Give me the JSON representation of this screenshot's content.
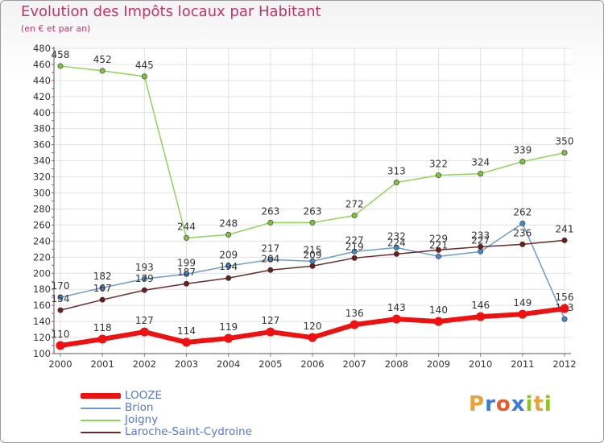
{
  "title": "Evolution des Impôts locaux par Habitant",
  "subtitle": "(en € et par an)",
  "logo": {
    "letters": [
      "P",
      "r",
      "o",
      "x",
      "i",
      "t",
      "i"
    ],
    "colors": [
      "#e9a13a",
      "#3b7bd6",
      "#e95a2b",
      "#3b7bd6",
      "#8fc31f",
      "#e9a13a",
      "#8fc31f"
    ]
  },
  "chart_data": {
    "type": "line",
    "x": [
      "2000",
      "2001",
      "2002",
      "2003",
      "2004",
      "2005",
      "2006",
      "2007",
      "2008",
      "2009",
      "2010",
      "2011",
      "2012"
    ],
    "ylim": [
      100,
      480
    ],
    "yticks": [
      "100",
      "120",
      "140",
      "160",
      "180",
      "200",
      "220",
      "240",
      "260",
      "280",
      "300",
      "320",
      "340",
      "360",
      "380",
      "400",
      "420",
      "440",
      "460",
      "480"
    ],
    "grid": true,
    "legend_position": "bottom-left",
    "series": [
      {
        "name": "Joigny",
        "color": "#8fd45a",
        "marker": "#7cc23e",
        "width": 1.5,
        "values": [
          458,
          452,
          445,
          244,
          248,
          263,
          263,
          272,
          313,
          322,
          324,
          339,
          350
        ],
        "labels": [
          "458",
          "452",
          "445",
          "244",
          "248",
          "263",
          "263",
          "272",
          "313",
          "322",
          "324",
          "339",
          "350"
        ]
      },
      {
        "name": "Brion",
        "color": "#6a9cd0",
        "marker": "#4a86c8",
        "width": 1.5,
        "values": [
          170,
          182,
          193,
          199,
          209,
          217,
          215,
          227,
          232,
          221,
          227,
          262,
          143
        ],
        "labels": [
          "170",
          "182",
          "193",
          "199",
          "209",
          "217",
          "215",
          "227",
          "232",
          "221",
          "227",
          "262",
          "143"
        ]
      },
      {
        "name": "Laroche-Saint-Cydroine",
        "color": "#6b2a2a",
        "marker": "#6b1f1f",
        "width": 1.5,
        "values": [
          154,
          167,
          179,
          187,
          194,
          204,
          209,
          219,
          224,
          229,
          233,
          236,
          241
        ],
        "labels": [
          "154",
          "167",
          "179",
          "187",
          "194",
          "204",
          "209",
          "219",
          "224",
          "229",
          "233",
          "236",
          "241"
        ]
      },
      {
        "name": "LOOZE",
        "color": "#ee1111",
        "marker": "#ee1111",
        "width": 6,
        "values": [
          110,
          118,
          127,
          114,
          119,
          127,
          120,
          136,
          143,
          140,
          146,
          149,
          156
        ],
        "labels": [
          "110",
          "118",
          "127",
          "114",
          "119",
          "127",
          "120",
          "136",
          "143",
          "140",
          "146",
          "149",
          "156"
        ]
      }
    ],
    "legend_order": [
      "LOOZE",
      "Brion",
      "Joigny",
      "Laroche-Saint-Cydroine"
    ]
  }
}
